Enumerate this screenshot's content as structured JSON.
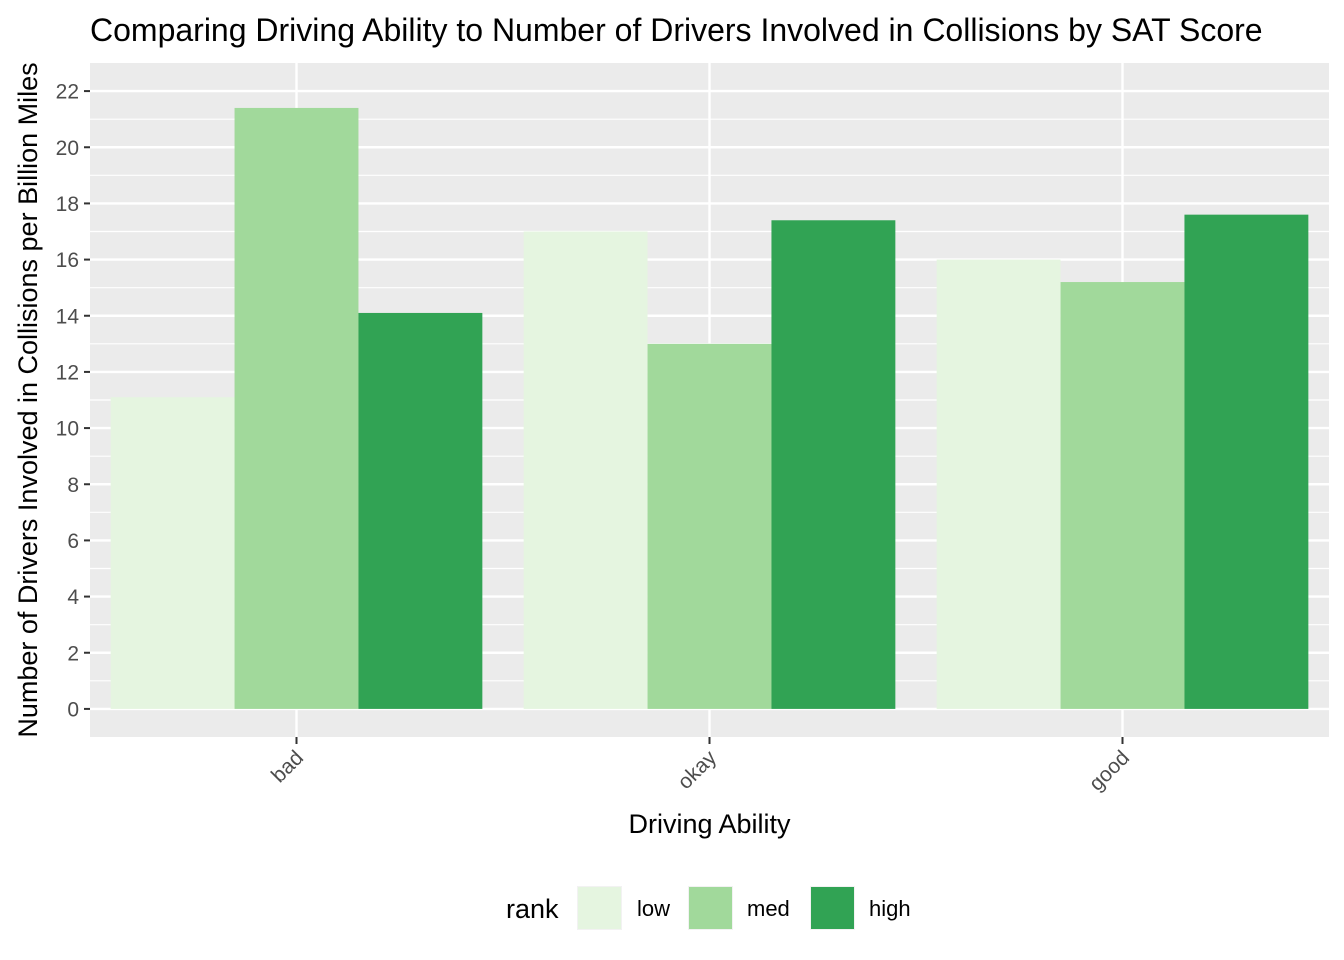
{
  "chart_data": {
    "type": "bar",
    "title": "Comparing Driving Ability to Number of Drivers Involved in Collisions by SAT Score",
    "xlabel": "Driving Ability",
    "ylabel": "Number of Drivers Involved in Collisions per Billion Miles",
    "categories": [
      "bad",
      "okay",
      "good"
    ],
    "series": [
      {
        "name": "low",
        "color": "#e5f5e0",
        "values": [
          11.1,
          17.0,
          16.0
        ]
      },
      {
        "name": "med",
        "color": "#a1d99b",
        "values": [
          21.4,
          13.0,
          15.2
        ]
      },
      {
        "name": "high",
        "color": "#31a354",
        "values": [
          14.1,
          17.4,
          17.6
        ]
      }
    ],
    "ylim": [
      -1,
      23
    ],
    "yticks": [
      0,
      2,
      4,
      6,
      8,
      10,
      12,
      14,
      16,
      18,
      20,
      22
    ],
    "ytick_labels": [
      "0",
      "2",
      "4",
      "6",
      "8",
      "10",
      "12",
      "14",
      "16",
      "18",
      "20",
      "22"
    ],
    "grid": true,
    "legend": {
      "title": "rank",
      "position": "bottom"
    },
    "panel_color": "#ebebeb"
  }
}
